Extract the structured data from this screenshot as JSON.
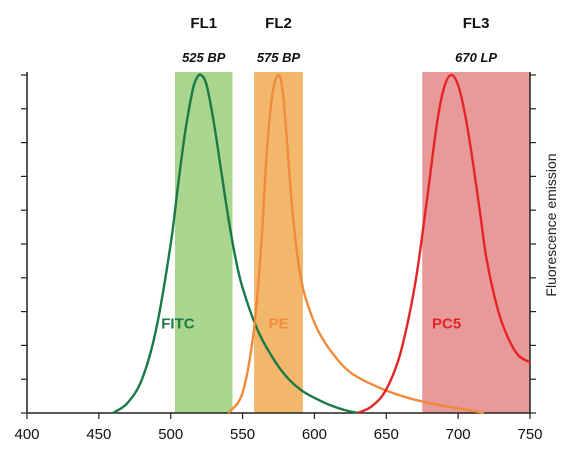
{
  "chart_data": {
    "type": "line",
    "title": "",
    "xlabel": "",
    "ylabel": "Fluorescence emission",
    "xlim": [
      400,
      750
    ],
    "ylim": [
      0,
      1
    ],
    "x_ticks": [
      400,
      450,
      500,
      550,
      600,
      650,
      700,
      750
    ],
    "grid": false,
    "filters": [
      {
        "name": "FL1",
        "label": "525 BP",
        "range": [
          503,
          543
        ],
        "color": "#a9d58f"
      },
      {
        "name": "FL2",
        "label": "575 BP",
        "range": [
          558,
          592
        ],
        "color": "#f3b76c"
      },
      {
        "name": "FL3",
        "label": "670 LP",
        "range": [
          675,
          750
        ],
        "color": "#e89a9a"
      }
    ],
    "series": [
      {
        "name": "FITC",
        "color": "#1a7a45",
        "label_at": [
          505,
          0.25
        ],
        "x": [
          460,
          470,
          480,
          490,
          500,
          505,
          510,
          515,
          518,
          521,
          525,
          530,
          535,
          540,
          545,
          550,
          560,
          570,
          580,
          590,
          600,
          610,
          620,
          630
        ],
        "y": [
          0,
          0.03,
          0.1,
          0.25,
          0.5,
          0.67,
          0.83,
          0.95,
          0.99,
          1.0,
          0.97,
          0.86,
          0.72,
          0.58,
          0.46,
          0.37,
          0.25,
          0.17,
          0.11,
          0.07,
          0.045,
          0.025,
          0.01,
          0
        ]
      },
      {
        "name": "PE",
        "color": "#f08a3c",
        "label_at": [
          575,
          0.25
        ],
        "x": [
          540,
          550,
          558,
          563,
          567,
          571,
          575,
          578,
          581,
          584,
          588,
          592,
          597,
          603,
          612,
          625,
          645,
          665,
          685,
          705,
          718
        ],
        "y": [
          0,
          0.06,
          0.25,
          0.5,
          0.78,
          0.95,
          1.0,
          0.95,
          0.8,
          0.63,
          0.47,
          0.37,
          0.3,
          0.24,
          0.18,
          0.12,
          0.075,
          0.045,
          0.025,
          0.01,
          0
        ]
      },
      {
        "name": "PC5",
        "color": "#e52525",
        "label_at": [
          692,
          0.25
        ],
        "x": [
          630,
          640,
          650,
          660,
          670,
          678,
          685,
          690,
          695,
          700,
          705,
          710,
          715,
          720,
          728,
          735,
          742,
          750
        ],
        "y": [
          0,
          0.02,
          0.07,
          0.18,
          0.38,
          0.62,
          0.85,
          0.96,
          1.0,
          0.97,
          0.88,
          0.75,
          0.6,
          0.45,
          0.3,
          0.22,
          0.17,
          0.15
        ]
      }
    ]
  }
}
